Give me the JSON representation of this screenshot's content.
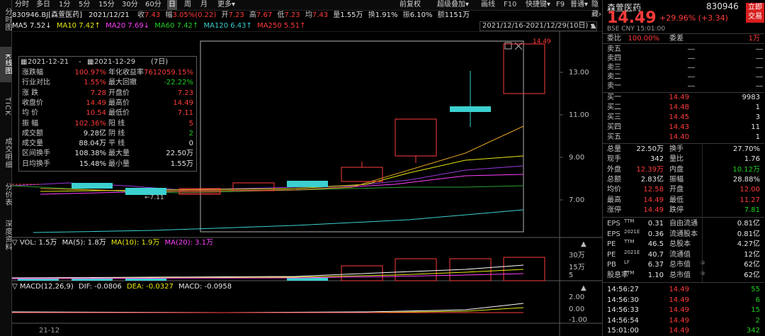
{
  "left_nav": [
    "分时图",
    "K线图",
    "TICK",
    "成交明细",
    "分价表",
    "深度资料"
  ],
  "toolbar": {
    "periods": [
      "分时",
      "多日",
      "1分",
      "5分",
      "15分",
      "30分",
      "60分",
      "日",
      "周",
      "月",
      "更多"
    ],
    "active_period": "日",
    "tools": [
      "前复权",
      "超级叠加",
      "画线",
      "F9",
      "普通",
      "隐藏"
    ],
    "f10": "F10",
    "quick": "快捷键"
  },
  "info": {
    "code_name": "830946.BJ[森萱医药]",
    "date": "2021/12/21",
    "close_label": "收",
    "close": "7.43",
    "amp_label": "幅",
    "amp": "3.05%(0.22)",
    "open_label": "开",
    "open": "7.23",
    "high_label": "高",
    "high": "7.67",
    "low_label": "低",
    "low": "7.23",
    "avg_label": "均",
    "avg": "7.43",
    "vol_label": "量",
    "vol": "1.55万",
    "turnover_label": "换",
    "turnover": "1.91%",
    "swing_label": "振",
    "swing": "6.10%",
    "amount_label": "额",
    "amount": "1151万"
  },
  "ma": {
    "ma5": "MA5 7.52↓",
    "ma10": "MA10 7.42↑",
    "ma20": "MA20 7.69↓",
    "ma60": "MA60 7.42↑",
    "ma120": "MA120 6.43↑",
    "ma250": "MA250 5.51↑"
  },
  "range_selector": "2021/12/16-2021/12/29(10日)",
  "stats": {
    "from": "2021-12-21",
    "to": "2021-12-29",
    "days": "(7日)",
    "rows": [
      {
        "l1": "涨跌幅",
        "v1": "100.97%",
        "c1": "red",
        "l2": "年化收益率",
        "v2": "7612059.15%",
        "c2": "red"
      },
      {
        "l1": "行业对比",
        "v1": "1.55%",
        "c1": "red",
        "l2": "最大回撤",
        "v2": "-22.22%",
        "c2": "green"
      },
      {
        "l1": "涨  跌",
        "v1": "7.28",
        "c1": "red",
        "l2": "开盘价",
        "v2": "7.23",
        "c2": "red"
      },
      {
        "l1": "收盘价",
        "v1": "14.49",
        "c1": "red",
        "l2": "最高价",
        "v2": "14.49",
        "c2": "red"
      },
      {
        "l1": "均  价",
        "v1": "10.54",
        "c1": "red",
        "l2": "最低价",
        "v2": "7.11",
        "c2": "red"
      },
      {
        "l1": "振  幅",
        "v1": "102.36%",
        "c1": "red",
        "l2": "阳  线",
        "v2": "5",
        "c2": "red"
      },
      {
        "l1": "成交额",
        "v1": "9.28亿",
        "c1": "white",
        "l2": "阴  线",
        "v2": "2",
        "c2": "green"
      },
      {
        "l1": "成交量",
        "v1": "88.04万",
        "c1": "white",
        "l2": "平  线",
        "v2": "0",
        "c2": "white"
      },
      {
        "l1": "区间换手",
        "v1": "108.38%",
        "c1": "white",
        "l2": "最大量",
        "v2": "22.50万",
        "c2": "white"
      },
      {
        "l1": "日均换手",
        "v1": "15.48%",
        "c1": "white",
        "l2": "最小量",
        "v2": "1.55万",
        "c2": "white"
      }
    ]
  },
  "price_axis": [
    "13.00",
    "11.00",
    "9.00",
    "7.00"
  ],
  "max_label": "14.49",
  "min_label": "7.11",
  "vol_header": {
    "vol": "VOL: 1.5万",
    "ma5": "MA(5): 1.8万",
    "ma10": "MA(10): 1.9万",
    "ma20": "MA(20): 3.1万"
  },
  "vol_axis": [
    "30万",
    "15万",
    "5"
  ],
  "macd_header": {
    "title": "MACD(12,26,9)",
    "dif": "DIF: -0.0806",
    "dea": "DEA: -0.0327",
    "macd": "MACD: -0.0958"
  },
  "macd_axis": [
    "2.00",
    "0.00",
    "-1.00"
  ],
  "date_label": "21-12",
  "right": {
    "name": "森萱医药",
    "code": "830946",
    "price": "14.49",
    "change": "+29.96% (+3.34)",
    "exchange": "BSE  CNY  15:01:00",
    "buy_btn": "立即交易",
    "webi_label": "委比",
    "webi": "100.00%",
    "weicha_label": "委差",
    "weicha": "1万",
    "sells": [
      {
        "l": "卖五",
        "p": "",
        "v": ""
      },
      {
        "l": "卖四",
        "p": "",
        "v": ""
      },
      {
        "l": "卖三",
        "p": "",
        "v": ""
      },
      {
        "l": "卖二",
        "p": "",
        "v": ""
      },
      {
        "l": "卖一",
        "p": "",
        "v": ""
      }
    ],
    "buys": [
      {
        "l": "买一",
        "p": "14.49",
        "v": "9983"
      },
      {
        "l": "买二",
        "p": "14.48",
        "v": "1"
      },
      {
        "l": "买三",
        "p": "14.45",
        "v": "3"
      },
      {
        "l": "买四",
        "p": "14.43",
        "v": "11"
      },
      {
        "l": "买五",
        "p": "14.40",
        "v": "1"
      }
    ],
    "quote": [
      {
        "l1": "总量",
        "v1": "22.50万",
        "c1": "white",
        "l2": "换手",
        "v2": "27.70%",
        "c2": "white"
      },
      {
        "l1": "现手",
        "v1": "342",
        "c1": "white",
        "l2": "量比",
        "v2": "1.76",
        "c2": "white"
      },
      {
        "l1": "外盘",
        "v1": "12.39万",
        "c1": "red",
        "l2": "内盘",
        "v2": "10.12万",
        "c2": "green"
      },
      {
        "l1": "总额",
        "v1": "2.83亿",
        "c1": "white",
        "l2": "振幅",
        "v2": "28.88%",
        "c2": "white"
      },
      {
        "l1": "均价",
        "v1": "12.58",
        "c1": "red",
        "l2": "开盘",
        "v2": "12.00",
        "c2": "red"
      },
      {
        "l1": "最高",
        "v1": "14.49",
        "c1": "red",
        "l2": "最低",
        "v2": "11.27",
        "c2": "red"
      },
      {
        "l1": "涨停",
        "v1": "14.49",
        "c1": "red",
        "l2": "跌停",
        "v2": "7.81",
        "c2": "green"
      }
    ],
    "finance": [
      {
        "l1": "EPS",
        "s1": "TTM",
        "v1": "0.31",
        "l2": "自由流通",
        "v2": "0.81亿"
      },
      {
        "l1": "EPS",
        "s1": "2021E",
        "v1": "0.36",
        "l2": "流通股本",
        "v2": "0.81亿"
      },
      {
        "l1": "PE",
        "s1": "TTM",
        "v1": "46.5",
        "l2": "总股本",
        "v2": "4.27亿"
      },
      {
        "l1": "PE",
        "s1": "2021E",
        "v1": "40.7",
        "l2": "流通值",
        "v2": "12亿"
      },
      {
        "l1": "PB",
        "s1": "LF",
        "v1": "6.37",
        "l2": "总市值",
        "s2": "①",
        "v2": "62亿"
      },
      {
        "l1": "股息率",
        "s1": "TTM",
        "v1": "1.10",
        "l2": "总市值",
        "s2": "②",
        "v2": "62亿"
      }
    ],
    "ticks": [
      {
        "t": "14:56:27",
        "p": "14.49",
        "v": "55"
      },
      {
        "t": "14:56:30",
        "p": "14.49",
        "v": "6"
      },
      {
        "t": "14:56:33",
        "p": "14.49",
        "v": "15"
      },
      {
        "t": "14:56:54",
        "p": "14.49",
        "v": "2"
      },
      {
        "t": "15:01:00",
        "p": "14.49",
        "v": "342"
      }
    ]
  },
  "colors": {
    "up": "#ff3b3b",
    "down": "#21d021",
    "cyan": "#3cd0d0",
    "bg": "#000000"
  }
}
